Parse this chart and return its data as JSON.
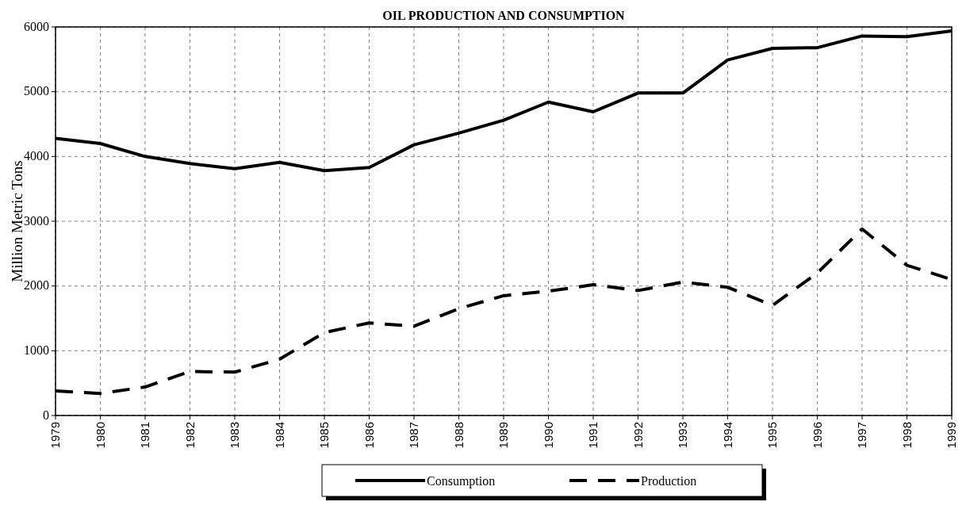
{
  "chart_data": {
    "type": "line",
    "title": "OIL PRODUCTION AND CONSUMPTION",
    "ylabel": "Million Metric Tons",
    "x": [
      1979,
      1980,
      1981,
      1982,
      1983,
      1984,
      1985,
      1986,
      1987,
      1988,
      1989,
      1990,
      1991,
      1992,
      1993,
      1994,
      1995,
      1996,
      1997,
      1998,
      1999
    ],
    "xlim": [
      1979,
      1999
    ],
    "xticks": [
      1979,
      1980,
      1981,
      1982,
      1983,
      1984,
      1985,
      1986,
      1987,
      1988,
      1989,
      1990,
      1991,
      1992,
      1993,
      1994,
      1995,
      1996,
      1997,
      1998,
      1999
    ],
    "ylim": [
      0,
      6000
    ],
    "yticks": [
      0,
      1000,
      2000,
      3000,
      4000,
      5000,
      6000
    ],
    "grid": true,
    "legend": "bottom",
    "marker": "none",
    "series": [
      {
        "name": "Consumption",
        "color": "#000000",
        "line_style": "solid",
        "values": [
          4280,
          4200,
          4000,
          3890,
          3810,
          3910,
          3780,
          3830,
          4180,
          4360,
          4560,
          4840,
          4690,
          4980,
          4980,
          5490,
          5670,
          5680,
          5860,
          5850,
          5940
        ]
      },
      {
        "name": "Production",
        "color": "#000000",
        "line_style": "dashed",
        "values": [
          380,
          340,
          440,
          680,
          670,
          870,
          1280,
          1430,
          1380,
          1650,
          1850,
          1920,
          2020,
          1930,
          2060,
          1980,
          1700,
          2200,
          2880,
          2320,
          2100
        ]
      }
    ]
  }
}
